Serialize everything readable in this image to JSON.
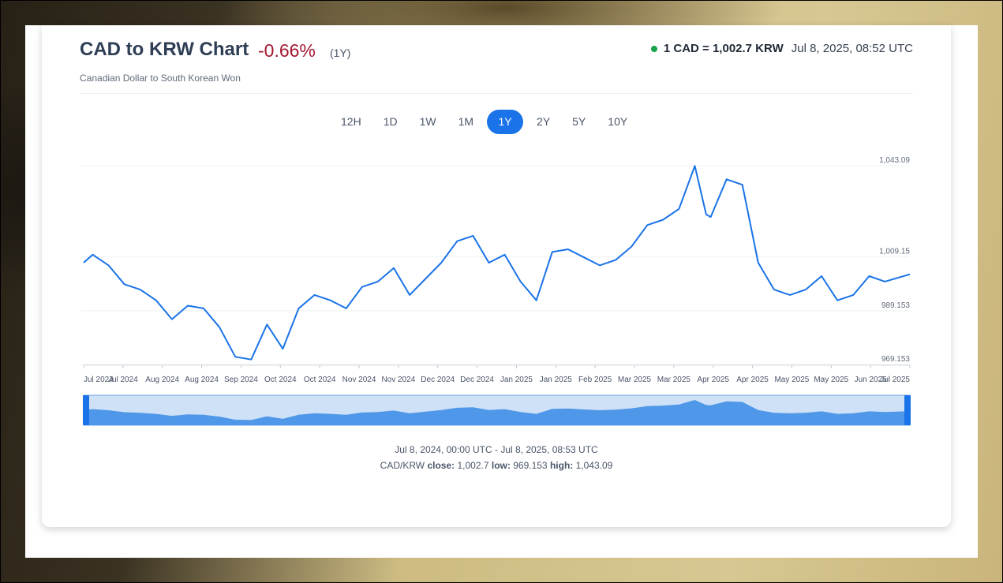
{
  "header": {
    "title": "CAD to KRW Chart",
    "change": "-0.66%",
    "period": "(1Y)",
    "subtitle": "Canadian Dollar to South Korean Won",
    "rate": "1 CAD = 1,002.7 KRW",
    "timestamp": "Jul 8, 2025, 08:52 UTC"
  },
  "tabs": [
    {
      "label": "12H",
      "active": false
    },
    {
      "label": "1D",
      "active": false
    },
    {
      "label": "1W",
      "active": false
    },
    {
      "label": "1M",
      "active": false
    },
    {
      "label": "1Y",
      "active": true
    },
    {
      "label": "2Y",
      "active": false
    },
    {
      "label": "5Y",
      "active": false
    },
    {
      "label": "10Y",
      "active": false
    }
  ],
  "footer": {
    "range": "Jul 8, 2024, 00:00 UTC - Jul 8, 2025, 08:53 UTC",
    "pair": "CAD/KRW",
    "close_label": "close:",
    "close": "1,002.7",
    "low_label": "low:",
    "low": "969.153",
    "high_label": "high:",
    "high": "1,043.09"
  },
  "colors": {
    "line": "#1a73e8",
    "navigator_fill": "#4f97e8",
    "navigator_selection": "#cfe1f7",
    "negative_change": "#a3182f",
    "live_dot": "#16a34a"
  },
  "chart_data": {
    "type": "line",
    "series": [
      {
        "name": "CAD/KRW",
        "x": [
          "2024-07-08",
          "2024-07-12",
          "2024-07-19",
          "2024-07-26",
          "2024-08-02",
          "2024-08-09",
          "2024-08-16",
          "2024-08-23",
          "2024-08-30",
          "2024-09-06",
          "2024-09-13",
          "2024-09-20",
          "2024-09-27",
          "2024-10-04",
          "2024-10-11",
          "2024-10-18",
          "2024-10-25",
          "2024-11-01",
          "2024-11-08",
          "2024-11-15",
          "2024-11-22",
          "2024-11-29",
          "2024-12-06",
          "2024-12-13",
          "2024-12-20",
          "2024-12-27",
          "2025-01-03",
          "2025-01-10",
          "2025-01-17",
          "2025-01-24",
          "2025-01-31",
          "2025-02-07",
          "2025-02-14",
          "2025-02-21",
          "2025-02-28",
          "2025-03-07",
          "2025-03-14",
          "2025-03-21",
          "2025-03-28",
          "2025-04-04",
          "2025-04-09",
          "2025-04-11",
          "2025-04-18",
          "2025-04-25",
          "2025-05-02",
          "2025-05-09",
          "2025-05-16",
          "2025-05-23",
          "2025-05-30",
          "2025-06-06",
          "2025-06-13",
          "2025-06-20",
          "2025-06-27",
          "2025-07-08"
        ],
        "y": [
          1007,
          1010,
          1006,
          999,
          997,
          993,
          986,
          991,
          990,
          983,
          972,
          971,
          984,
          975,
          990,
          995,
          993,
          990,
          998,
          1000,
          1005,
          995,
          1001,
          1007,
          1015,
          1017,
          1007,
          1010,
          1000,
          993,
          1011,
          1012,
          1009,
          1006,
          1008,
          1013,
          1021,
          1023,
          1027,
          1043,
          1025,
          1024,
          1038,
          1036,
          1007,
          997,
          995,
          997,
          1002,
          993,
          995,
          1002,
          1000,
          1002.7
        ]
      }
    ],
    "y_ticks": [
      "1,043.09",
      "1,009.15",
      "989.153",
      "969.153"
    ],
    "y_tick_values": [
      1043.09,
      1009.15,
      989.153,
      969.153
    ],
    "x_tick_labels": [
      "Jul 2024",
      "Jul 2024",
      "Aug 2024",
      "Aug 2024",
      "Sep 2024",
      "Oct 2024",
      "Oct 2024",
      "Nov 2024",
      "Nov 2024",
      "Dec 2024",
      "Dec 2024",
      "Jan 2025",
      "Jan 2025",
      "Feb 2025",
      "Mar 2025",
      "Mar 2025",
      "Apr 2025",
      "Apr 2025",
      "May 2025",
      "May 2025",
      "Jun 2025",
      "Jul 2025"
    ],
    "xlim": [
      "2024-07-08",
      "2025-07-08"
    ],
    "ylim": [
      969.153,
      1043.09
    ],
    "grid": true,
    "legend": "none"
  }
}
